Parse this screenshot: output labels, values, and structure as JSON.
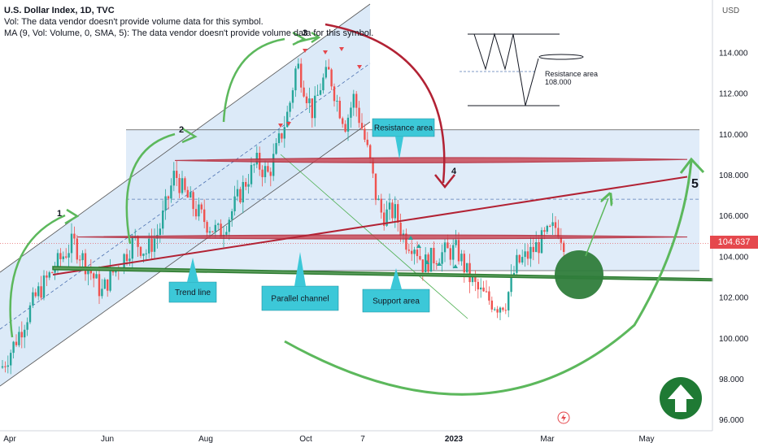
{
  "legend": {
    "title": "U.S. Dollar Index, 1D, TVC",
    "vol": "Vol: The data vendor doesn't provide volume data for this symbol.",
    "ma": "MA (9, Vol: Volume, 0, SMA, 5): The data vendor doesn't provide volume data for this symbol."
  },
  "current_price": "104.637",
  "annotations": {
    "resistance_box": "Resistance area",
    "trend_line": "Trend line",
    "parallel_channel": "Parallel channel",
    "support_area": "Support area",
    "resistance_label": "Resistance area",
    "resistance_value": "108.000",
    "wave_1": "1",
    "wave_2": "2",
    "wave_3": "3",
    "wave_4": "4",
    "wave_5": "5"
  },
  "colors": {
    "up": "#26a69a",
    "down": "#ef5350",
    "channel_fill": "#d6e6f7",
    "resistance": "#b22234",
    "support": "#2e7d32",
    "callout": "#3cc8d8",
    "arrow_green": "#5cb85c",
    "arrow_red": "#b22234"
  },
  "chart_data": {
    "type": "candlestick",
    "ylim": [
      95.5,
      115.5
    ],
    "y_ticks": [
      "96.000",
      "98.000",
      "100.000",
      "102.000",
      "104.000",
      "106.000",
      "108.000",
      "110.000",
      "112.000",
      "114.000"
    ],
    "y_tick_values": [
      96,
      98,
      100,
      102,
      104,
      106,
      108,
      110,
      112,
      114
    ],
    "x_ticks": [
      "Apr",
      "Jun",
      "Aug",
      "Oct",
      "7",
      "2023",
      "Mar",
      "May"
    ],
    "currency": "USD",
    "key_levels": {
      "resistance_high": 108.7,
      "resistance_mid": 106.8,
      "resistance_low": 104.9,
      "upper_box": 110.2,
      "lower_box": 103.3,
      "support": 103.1
    },
    "path": [
      [
        0,
        98.4
      ],
      [
        15,
        99.5
      ],
      [
        30,
        100.8
      ],
      [
        45,
        102.1
      ],
      [
        60,
        103.0
      ],
      [
        75,
        103.9
      ],
      [
        90,
        104.7
      ],
      [
        100,
        104.0
      ],
      [
        112,
        103.2
      ],
      [
        125,
        102.2
      ],
      [
        135,
        103.0
      ],
      [
        150,
        103.8
      ],
      [
        165,
        104.8
      ],
      [
        180,
        104.2
      ],
      [
        195,
        105.2
      ],
      [
        205,
        106.6
      ],
      [
        215,
        108.1
      ],
      [
        225,
        107.2
      ],
      [
        240,
        106.3
      ],
      [
        255,
        105.6
      ],
      [
        270,
        105.1
      ],
      [
        285,
        106.2
      ],
      [
        300,
        107.5
      ],
      [
        315,
        108.6
      ],
      [
        330,
        108.0
      ],
      [
        340,
        109.2
      ],
      [
        355,
        111.2
      ],
      [
        365,
        113.5
      ],
      [
        375,
        112.2
      ],
      [
        385,
        111.0
      ],
      [
        395,
        112.5
      ],
      [
        405,
        113.0
      ],
      [
        415,
        111.5
      ],
      [
        425,
        110.5
      ],
      [
        435,
        111.8
      ],
      [
        445,
        110.3
      ],
      [
        455,
        108.6
      ],
      [
        462,
        107.0
      ],
      [
        470,
        106.0
      ],
      [
        485,
        106.2
      ],
      [
        498,
        104.8
      ],
      [
        510,
        104.6
      ],
      [
        520,
        103.6
      ],
      [
        535,
        104.0
      ],
      [
        548,
        104.2
      ],
      [
        562,
        104.3
      ],
      [
        575,
        103.1
      ],
      [
        588,
        102.3
      ],
      [
        600,
        101.9
      ],
      [
        612,
        101.6
      ],
      [
        622,
        101.8
      ],
      [
        635,
        103.6
      ],
      [
        648,
        104.0
      ],
      [
        660,
        104.5
      ],
      [
        672,
        105.0
      ],
      [
        685,
        105.5
      ],
      [
        695,
        104.6
      ]
    ]
  }
}
